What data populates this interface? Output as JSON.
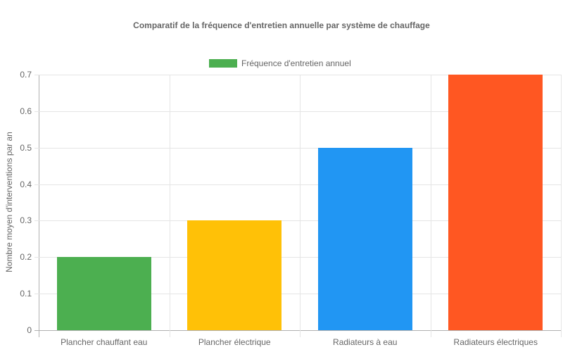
{
  "chart_data": {
    "type": "bar",
    "title": "Comparatif de la fréquence d'entretien annuelle par système de chauffage",
    "xlabel": "",
    "ylabel": "Nombre moyen d'interventions par an",
    "categories": [
      "Plancher chauffant eau",
      "Plancher électrique",
      "Radiateurs à eau",
      "Radiateurs électriques"
    ],
    "series": [
      {
        "name": "Fréquence d'entretien annuel",
        "values": [
          0.2,
          0.3,
          0.5,
          0.7
        ]
      }
    ],
    "bar_colors": [
      "#4caf50",
      "#ffc107",
      "#2196f3",
      "#ff5722"
    ],
    "legend_color": "#4caf50",
    "ylim": [
      0,
      0.7
    ],
    "yticks": [
      "0",
      "0.1",
      "0.2",
      "0.3",
      "0.4",
      "0.5",
      "0.6",
      "0.7"
    ],
    "grid": true,
    "legend_position": "top"
  }
}
